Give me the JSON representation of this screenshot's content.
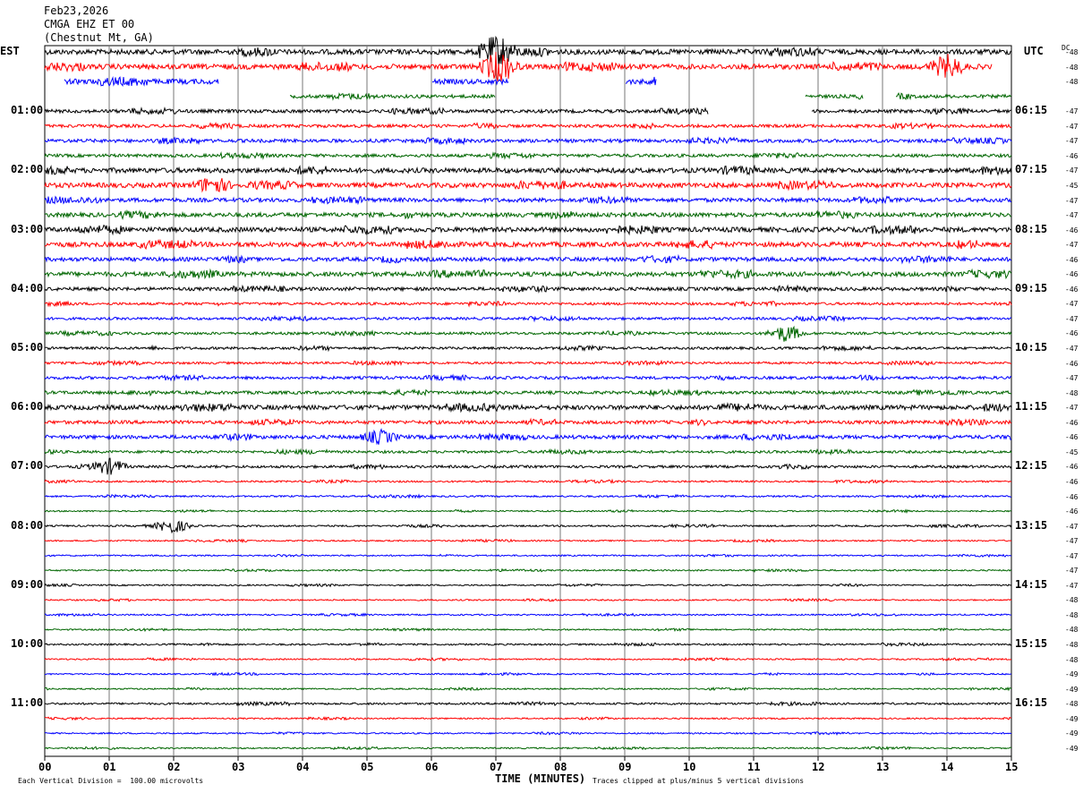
{
  "header": {
    "date": "Feb23,2026",
    "channel": "CMGA EHZ ET 00",
    "location": "(Chestnut Mt, GA)"
  },
  "left_axis_title": "EST",
  "right_axis_title": "UTC",
  "dc_title": "DC",
  "colors": [
    "#000000",
    "#ff0000",
    "#0000ff",
    "#006600"
  ],
  "footer": {
    "left": "Each Vertical Division =  100.00 microvolts",
    "right": "Traces clipped at plus/minus 5 vertical divisions"
  },
  "chart_data": {
    "type": "line",
    "title": "",
    "xlabel": "TIME (MINUTES)",
    "x_ticks": [
      "00",
      "01",
      "02",
      "03",
      "04",
      "05",
      "06",
      "07",
      "08",
      "09",
      "10",
      "11",
      "12",
      "13",
      "14",
      "15"
    ],
    "xlim": [
      0,
      15
    ],
    "grid": true,
    "rows_per_hour": 4,
    "row_count": 48,
    "est_hour_labels": [
      "01:00",
      "02:00",
      "03:00",
      "04:00",
      "05:00",
      "06:00",
      "07:00",
      "08:00",
      "09:00",
      "10:00",
      "11:00"
    ],
    "utc_hour_labels": [
      "06:15",
      "07:15",
      "08:15",
      "09:15",
      "10:15",
      "11:15",
      "12:15",
      "13:15",
      "14:15",
      "15:15",
      "16:15"
    ],
    "dc_offsets": [
      "-48",
      "-48",
      "-48",
      "",
      "-47",
      "-47",
      "-47",
      "-46",
      "-47",
      "-45",
      "-47",
      "-47",
      "-46",
      "-47",
      "-46",
      "-46",
      "-46",
      "-47",
      "-47",
      "-46",
      "-47",
      "-46",
      "-47",
      "-48",
      "-47",
      "-46",
      "-46",
      "-45",
      "-46",
      "-46",
      "-46",
      "-46",
      "-47",
      "-47",
      "-47",
      "-47",
      "-47",
      "-48",
      "-48",
      "-48",
      "-48",
      "-48",
      "-49",
      "-49",
      "-48",
      "-49",
      "-49",
      "-49"
    ],
    "activity_level": [
      0.9,
      0.9,
      0.9,
      0.6,
      0.6,
      0.55,
      0.6,
      0.55,
      0.85,
      0.85,
      0.7,
      0.75,
      0.85,
      0.85,
      0.7,
      0.8,
      0.6,
      0.45,
      0.45,
      0.45,
      0.45,
      0.4,
      0.5,
      0.55,
      0.8,
      0.6,
      0.65,
      0.45,
      0.45,
      0.3,
      0.3,
      0.25,
      0.3,
      0.25,
      0.25,
      0.25,
      0.25,
      0.25,
      0.25,
      0.25,
      0.3,
      0.25,
      0.25,
      0.25,
      0.35,
      0.25,
      0.25,
      0.25
    ],
    "gaps": [
      {
        "row": 2,
        "ranges": [
          [
            0,
            0.3
          ],
          [
            2.7,
            6.0
          ],
          [
            7.2,
            9.0
          ],
          [
            9.5,
            15
          ]
        ]
      },
      {
        "row": 3,
        "ranges": [
          [
            0,
            3.8
          ],
          [
            7.0,
            11.8
          ],
          [
            12.7,
            13.2
          ]
        ]
      },
      {
        "row": 4,
        "ranges": [
          [
            10.3,
            11.9
          ]
        ]
      },
      {
        "row": 1,
        "ranges": [
          [
            14.7,
            15
          ]
        ]
      }
    ],
    "events": [
      {
        "row": 0,
        "minute": 7.0,
        "amplitude": 3
      },
      {
        "row": 1,
        "minute": 7.05,
        "amplitude": 3
      },
      {
        "row": 1,
        "minute": 14.0,
        "amplitude": 2
      },
      {
        "row": 9,
        "minute": 2.6,
        "amplitude": 1.5
      },
      {
        "row": 19,
        "minute": 11.5,
        "amplitude": 1.5
      },
      {
        "row": 26,
        "minute": 5.2,
        "amplitude": 1.2
      },
      {
        "row": 28,
        "minute": 1.0,
        "amplitude": 1.2
      },
      {
        "row": 32,
        "minute": 2.0,
        "amplitude": 1.2
      }
    ],
    "note_footer": "Traces clipped at plus/minus 5 vertical divisions"
  }
}
